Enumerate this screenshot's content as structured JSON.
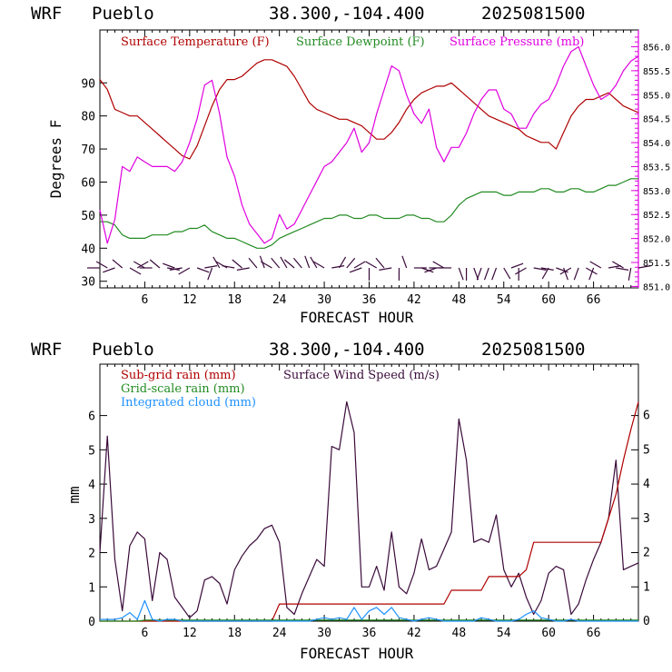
{
  "top_header": {
    "model": "WRF",
    "station": "Pueblo",
    "coords": "38.300,-104.400",
    "run": "2025081500"
  },
  "bottom_header": {
    "model": "WRF",
    "station": "Pueblo",
    "coords": "38.300,-104.400",
    "run": "2025081500"
  },
  "colors": {
    "temperature": "#b00000",
    "dewpoint": "#228b22",
    "pressure": "#e000e0",
    "wind": "#3a0a3a",
    "subgrid": "#b00000",
    "gridscale": "#228b22",
    "cloud": "#1e90ff",
    "barb": "#3a0a3a"
  },
  "chart_data": [
    {
      "type": "line",
      "xlabel": "FORECAST HOUR",
      "ylabel": "Degrees F",
      "xlim": [
        0,
        72
      ],
      "ylim": [
        28,
        106
      ],
      "y2lim": [
        850.97,
        856.35
      ],
      "x_ticks": [
        "6",
        "12",
        "18",
        "24",
        "30",
        "36",
        "42",
        "48",
        "54",
        "60",
        "66"
      ],
      "y_ticks": [
        "30",
        "40",
        "50",
        "60",
        "70",
        "80",
        "90"
      ],
      "y2_ticks": [
        "851.0",
        "851.5",
        "852.0",
        "852.5",
        "853.0",
        "853.5",
        "854.0",
        "854.5",
        "855.0",
        "855.5",
        "856.0"
      ],
      "legend": [
        "Surface Temperature (F)",
        "Surface Dewpoint (F)",
        "Surface Pressure (mb)"
      ],
      "x": [
        0,
        1,
        2,
        3,
        4,
        5,
        6,
        7,
        8,
        9,
        10,
        11,
        12,
        13,
        14,
        15,
        16,
        17,
        18,
        19,
        20,
        21,
        22,
        23,
        24,
        25,
        26,
        27,
        28,
        29,
        30,
        31,
        32,
        33,
        34,
        35,
        36,
        37,
        38,
        39,
        40,
        41,
        42,
        43,
        44,
        45,
        46,
        47,
        48,
        49,
        50,
        51,
        52,
        53,
        54,
        55,
        56,
        57,
        58,
        59,
        60,
        61,
        62,
        63,
        64,
        65,
        66,
        67,
        68,
        69,
        70,
        71,
        72
      ],
      "series": [
        {
          "name": "Surface Temperature (F)",
          "axis": "left",
          "values": [
            91,
            88,
            82,
            81,
            80,
            80,
            78,
            76,
            74,
            72,
            70,
            68,
            67,
            71,
            77,
            83,
            88,
            91,
            91,
            92,
            94,
            96,
            97,
            97,
            96,
            95,
            92,
            88,
            84,
            82,
            81,
            80,
            79,
            79,
            78,
            77,
            75,
            73,
            73,
            75,
            78,
            82,
            85,
            87,
            88,
            89,
            89,
            90,
            88,
            86,
            84,
            82,
            80,
            79,
            78,
            77,
            76,
            74,
            73,
            72,
            72,
            70,
            75,
            80,
            83,
            85,
            85,
            86,
            87,
            85,
            83,
            82,
            81
          ]
        },
        {
          "name": "Surface Dewpoint (F)",
          "axis": "left",
          "values": [
            48,
            48,
            47,
            44,
            43,
            43,
            43,
            44,
            44,
            44,
            45,
            45,
            46,
            46,
            47,
            45,
            44,
            43,
            43,
            42,
            41,
            40,
            40,
            41,
            43,
            44,
            45,
            46,
            47,
            48,
            49,
            49,
            50,
            50,
            49,
            49,
            50,
            50,
            49,
            49,
            49,
            50,
            50,
            49,
            49,
            48,
            48,
            50,
            53,
            55,
            56,
            57,
            57,
            57,
            56,
            56,
            57,
            57,
            57,
            58,
            58,
            57,
            57,
            58,
            58,
            57,
            57,
            58,
            59,
            59,
            60,
            61,
            61
          ]
        },
        {
          "name": "Surface Pressure (mb)",
          "axis": "right",
          "values": [
            852.6,
            851.9,
            852.4,
            853.5,
            853.4,
            853.7,
            853.6,
            853.5,
            853.5,
            853.5,
            853.4,
            853.6,
            854.0,
            854.5,
            855.2,
            855.3,
            854.6,
            853.7,
            853.3,
            852.7,
            852.3,
            852.1,
            851.9,
            852.0,
            852.5,
            852.2,
            852.3,
            852.6,
            852.9,
            853.2,
            853.5,
            853.6,
            853.8,
            854.0,
            854.3,
            853.8,
            854.0,
            854.6,
            855.1,
            855.6,
            855.5,
            855.0,
            854.6,
            854.4,
            854.7,
            853.9,
            853.6,
            853.9,
            853.9,
            854.2,
            854.6,
            854.9,
            855.1,
            855.1,
            854.7,
            854.6,
            854.3,
            854.3,
            854.6,
            854.8,
            854.9,
            855.2,
            855.6,
            855.9,
            856.0,
            855.6,
            855.2,
            854.9,
            855.0,
            855.2,
            855.5,
            855.7,
            855.8
          ]
        }
      ],
      "wind_barb_directions_deg": [
        270,
        300,
        250,
        310,
        120,
        60,
        300,
        270,
        310,
        100,
        290,
        260,
        240,
        110,
        80,
        200,
        330,
        300,
        280,
        310,
        260,
        320,
        340,
        300,
        320,
        330,
        310,
        320,
        340,
        330,
        300,
        80,
        30,
        40,
        60,
        250,
        180,
        300,
        320,
        260,
        180,
        340,
        90,
        110,
        90,
        250,
        300,
        270,
        160,
        180,
        160,
        200,
        200,
        200,
        150,
        70,
        180,
        240,
        100,
        100,
        210,
        110,
        160,
        240,
        200,
        120,
        200,
        300,
        80,
        100,
        300,
        190,
        80
      ]
    },
    {
      "type": "line",
      "xlabel": "FORECAST HOUR",
      "ylabel": "mm",
      "xlim": [
        0,
        72
      ],
      "ylim": [
        0,
        7.5
      ],
      "y2lim": [
        0,
        7.5
      ],
      "x_ticks": [
        "6",
        "12",
        "18",
        "24",
        "30",
        "36",
        "42",
        "48",
        "54",
        "60",
        "66"
      ],
      "y_ticks": [
        "0",
        "1",
        "2",
        "3",
        "4",
        "5",
        "6"
      ],
      "y2_ticks": [
        "0",
        "1",
        "2",
        "3",
        "4",
        "5",
        "6"
      ],
      "legend": [
        "Sub-grid rain (mm)",
        "Surface Wind Speed (m/s)",
        "Grid-scale rain (mm)",
        "Integrated cloud (mm)"
      ],
      "x": [
        0,
        1,
        2,
        3,
        4,
        5,
        6,
        7,
        8,
        9,
        10,
        11,
        12,
        13,
        14,
        15,
        16,
        17,
        18,
        19,
        20,
        21,
        22,
        23,
        24,
        25,
        26,
        27,
        28,
        29,
        30,
        31,
        32,
        33,
        34,
        35,
        36,
        37,
        38,
        39,
        40,
        41,
        42,
        43,
        44,
        45,
        46,
        47,
        48,
        49,
        50,
        51,
        52,
        53,
        54,
        55,
        56,
        57,
        58,
        59,
        60,
        61,
        62,
        63,
        64,
        65,
        66,
        67,
        68,
        69,
        70,
        71,
        72
      ],
      "series": [
        {
          "name": "Surface Wind Speed (m/s)",
          "axis": "right",
          "values": [
            2.0,
            5.4,
            1.8,
            0.3,
            2.2,
            2.6,
            2.4,
            0.6,
            2.0,
            1.8,
            0.7,
            0.4,
            0.1,
            0.3,
            1.2,
            1.3,
            1.1,
            0.5,
            1.5,
            1.9,
            2.2,
            2.4,
            2.7,
            2.8,
            2.3,
            0.4,
            0.2,
            0.8,
            1.3,
            1.8,
            1.6,
            5.1,
            5.0,
            6.4,
            5.5,
            1.0,
            1.0,
            1.6,
            0.9,
            2.6,
            1.0,
            0.8,
            1.4,
            2.4,
            1.5,
            1.6,
            2.1,
            2.6,
            5.9,
            4.7,
            2.3,
            2.4,
            2.3,
            3.1,
            1.5,
            1.0,
            1.4,
            0.7,
            0.2,
            0.6,
            1.4,
            1.6,
            1.5,
            0.2,
            0.5,
            1.2,
            1.8,
            2.3,
            3.0,
            4.7,
            1.5,
            1.6,
            1.7
          ]
        },
        {
          "name": "Sub-grid rain (mm)",
          "axis": "left",
          "values": [
            0,
            0,
            0,
            0,
            0,
            0,
            0,
            0,
            0,
            0,
            0,
            0,
            0,
            0,
            0,
            0,
            0,
            0,
            0,
            0,
            0,
            0,
            0,
            0,
            0.5,
            0.5,
            0.5,
            0.5,
            0.5,
            0.5,
            0.5,
            0.5,
            0.5,
            0.5,
            0.5,
            0.5,
            0.5,
            0.5,
            0.5,
            0.5,
            0.5,
            0.5,
            0.5,
            0.5,
            0.5,
            0.5,
            0.5,
            0.9,
            0.9,
            0.9,
            0.9,
            0.9,
            1.3,
            1.3,
            1.3,
            1.3,
            1.3,
            1.5,
            2.3,
            2.3,
            2.3,
            2.3,
            2.3,
            2.3,
            2.3,
            2.3,
            2.3,
            2.3,
            3.0,
            3.7,
            4.7,
            5.6,
            6.4
          ]
        },
        {
          "name": "Grid-scale rain (mm)",
          "axis": "left",
          "values": [
            0,
            0,
            0,
            0,
            0,
            0,
            0.03,
            0.03,
            0.03,
            0.03,
            0.03,
            0.03,
            0.03,
            0.03,
            0.03,
            0.03,
            0.03,
            0.03,
            0.03,
            0.03,
            0.03,
            0.03,
            0.03,
            0.03,
            0.03,
            0.03,
            0.03,
            0.03,
            0.03,
            0.03,
            0.03,
            0.03,
            0.03,
            0.03,
            0.03,
            0.03,
            0.03,
            0.03,
            0.03,
            0.03,
            0.03,
            0.03,
            0.03,
            0.03,
            0.03,
            0.03,
            0.03,
            0.03,
            0.03,
            0.03,
            0.03,
            0.03,
            0.03,
            0.03,
            0.03,
            0.03,
            0.03,
            0.03,
            0.03,
            0.03,
            0.03,
            0.03,
            0.03,
            0.03,
            0.03,
            0.03,
            0.03,
            0.03,
            0.03,
            0.03,
            0.03,
            0.03,
            0.03
          ]
        },
        {
          "name": "Integrated cloud (mm)",
          "axis": "left",
          "values": [
            0.05,
            0.05,
            0.05,
            0.1,
            0.25,
            0.05,
            0.6,
            0.05,
            0.0,
            0.05,
            0.05,
            0.0,
            0.0,
            0.0,
            0.0,
            0.0,
            0.0,
            0.0,
            0.0,
            0.0,
            0.0,
            0.0,
            0.0,
            0.0,
            0.0,
            0.0,
            0.0,
            0.0,
            0.0,
            0.05,
            0.1,
            0.05,
            0.1,
            0.05,
            0.4,
            0.05,
            0.3,
            0.4,
            0.2,
            0.4,
            0.1,
            0.05,
            0.0,
            0.05,
            0.1,
            0.05,
            0.0,
            0.0,
            0.0,
            0.0,
            0.0,
            0.1,
            0.05,
            0.0,
            0.0,
            0.0,
            0.05,
            0.2,
            0.3,
            0.1,
            0.05,
            0.0,
            0.0,
            0.05,
            0.0,
            0.0,
            0.0,
            0.0,
            0.0,
            0.0,
            0.0,
            0.0,
            0.0
          ]
        }
      ]
    }
  ]
}
